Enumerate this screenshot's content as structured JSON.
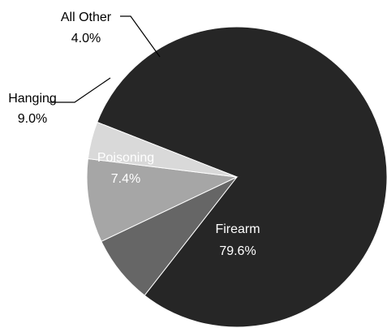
{
  "chart_data": {
    "type": "pie",
    "title": "",
    "slices": [
      {
        "label": "Firearm",
        "value": 79.6,
        "value_label": "79.6%",
        "color": "#262626",
        "text_color": "#ffffff"
      },
      {
        "label": "Poisoning",
        "value": 7.4,
        "value_label": "7.4%",
        "color": "#666666",
        "text_color": "#ffffff"
      },
      {
        "label": "Hanging",
        "value": 9.0,
        "value_label": "9.0%",
        "color": "#a6a6a6",
        "text_color": "#000000"
      },
      {
        "label": "All Other",
        "value": 4.0,
        "value_label": "4.0%",
        "color": "#d9d9d9",
        "text_color": "#000000"
      }
    ],
    "legend": "none",
    "slice_border_color": "#ffffff"
  }
}
